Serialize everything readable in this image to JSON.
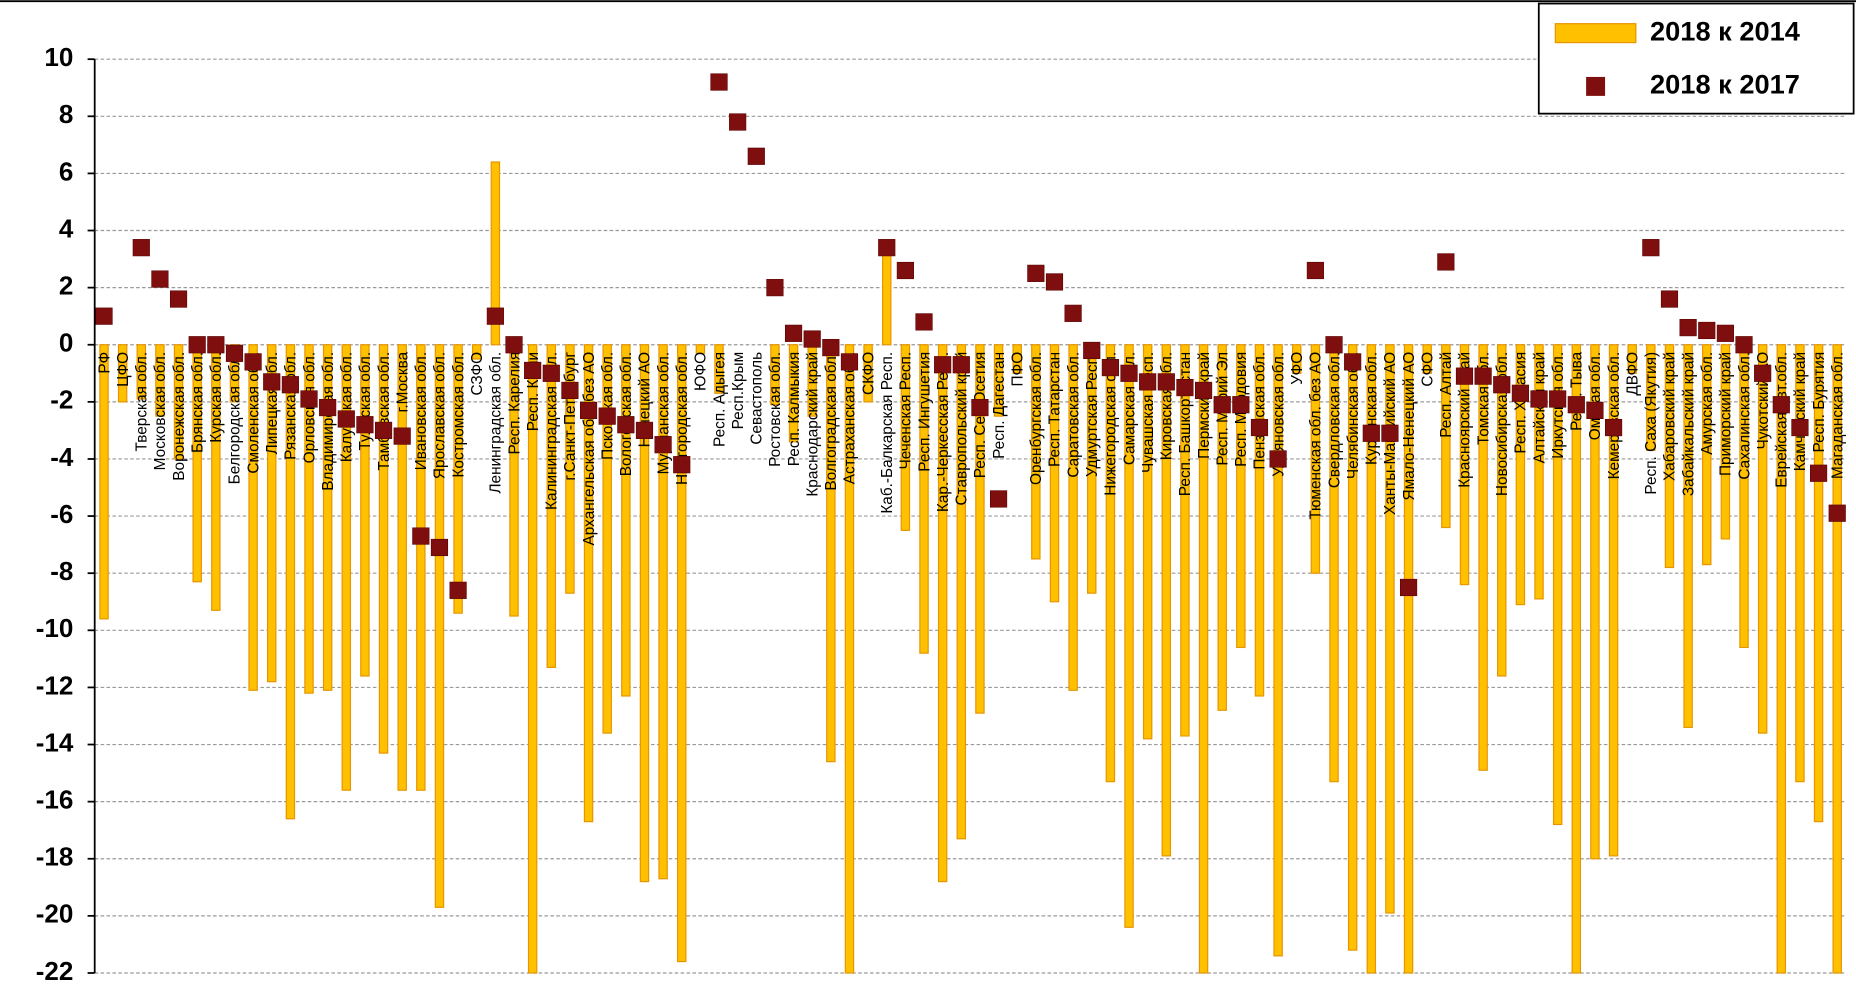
{
  "chart_data": {
    "type": "bar+scatter",
    "categories": [
      "РФ",
      "ЦФО",
      "Тверская обл.",
      "Московская обл.",
      "Воронежская обл.",
      "Брянская обл.",
      "Курская обл.",
      "Белгородская обл.",
      "Смоленская обл.",
      "Липецкая обл.",
      "Рязанская обл.",
      "Орловская обл.",
      "Владимирская обл.",
      "Калужская обл.",
      "Тульская обл.",
      "Тамбовская обл.",
      "г.Москва",
      "Ивановская обл.",
      "Ярославская обл.",
      "Костромская обл.",
      "СЗФО",
      "Ленинградская обл.",
      "Респ. Карелия",
      "Респ. Коми",
      "Калининградская обл.",
      "г.Санкт-Петербург",
      "Архангельская обл. без АО",
      "Псковская обл.",
      "Вологодская обл.",
      "Ненецкий АО",
      "Мурманская обл.",
      "Новгородская обл.",
      "ЮФО",
      "Респ. Адыгея",
      "Респ.Крым",
      "Севастополь",
      "Ростовская обл.",
      "Респ. Калмыкия",
      "Краснодарский край",
      "Волгоградская обл.",
      "Астраханская обл.",
      "СКФО",
      "Каб.-Балкарская Респ.",
      "Чеченская Респ.",
      "Респ. Ингушетия",
      "Кар.-Черкесская Респ.",
      "Ставропольский край",
      "Респ. Сев.Осетия",
      "Респ. Дагестан",
      "ПФО",
      "Оренбургская обл.",
      "Респ. Татарстан",
      "Саратовская обл.",
      "Удмуртская Респ.",
      "Нижегородская обл.",
      "Самарская обл.",
      "Чувашская Респ.",
      "Кировская обл.",
      "Респ. Башкортостан",
      "Пермский край",
      "Респ. Марий Эл",
      "Респ. Мордовия",
      "Пензенская обл.",
      "Ульяновская обл.",
      "УФО",
      "Тюменская обл. без АО",
      "Свердловская обл.",
      "Челябинская обл.",
      "Курганская обл.",
      "Ханты-Мансийский АО",
      "Ямало-Ненецкий АО",
      "СФО",
      "Респ. Алтай",
      "Красноярский край",
      "Томская обл.",
      "Новосибирская обл.",
      "Респ. Хакасия",
      "Алтайский край",
      "Иркутская обл.",
      "Респ. Тыва",
      "Омская обл.",
      "Кемеровская обл.",
      "ДВФО",
      "Респ. Саха (Якутия)",
      "Хабаровский край",
      "Забайкальский край",
      "Амурская обл.",
      "Приморский край",
      "Сахалинская обл.",
      "Чукотский АО",
      "Еврейская авт.обл.",
      "Камчатский край",
      "Респ. Бурятия",
      "Магаданская обл."
    ],
    "series": [
      {
        "name": "2018 к 2014",
        "type": "bar",
        "color": "#FFC000",
        "values": [
          -9.6,
          -2.0,
          -1.9,
          -2.5,
          -4.0,
          -8.3,
          -9.3,
          -2.0,
          -12.1,
          -11.8,
          -16.6,
          -12.2,
          -12.1,
          -15.6,
          -11.6,
          -14.3,
          -15.6,
          -15.6,
          -19.7,
          -9.4,
          -0.5,
          6.4,
          -9.5,
          -22,
          -11.3,
          -8.7,
          -16.7,
          -13.6,
          -12.3,
          -18.8,
          -18.7,
          -21.6,
          -0.3,
          -1.7,
          null,
          null,
          -2.1,
          -3.4,
          -2.5,
          -14.6,
          -22,
          -2.0,
          3.2,
          -6.5,
          -10.8,
          -18.8,
          -17.3,
          -12.9,
          -2.5,
          -1.0,
          -7.5,
          -9.0,
          -12.1,
          -8.7,
          -15.3,
          -20.4,
          -13.8,
          -17.9,
          -13.7,
          -22,
          -12.8,
          -10.6,
          -12.3,
          -21.4,
          -1.0,
          -8.0,
          -15.3,
          -21.2,
          -22,
          -19.9,
          -22,
          -1.0,
          -6.4,
          -8.4,
          -14.9,
          -11.6,
          -9.1,
          -8.9,
          -16.8,
          -22,
          -18.0,
          -17.9,
          -1.0,
          -3.7,
          -7.8,
          -13.4,
          -7.7,
          -6.8,
          -10.6,
          -13.6,
          -22,
          -15.3,
          -16.7,
          -22
        ]
      },
      {
        "name": "2018 к 2017",
        "type": "scatter",
        "color": "#7F0F0F",
        "values": [
          1.0,
          null,
          3.4,
          2.3,
          1.6,
          0,
          0,
          -0.3,
          -0.6,
          -1.3,
          -1.4,
          -1.9,
          -2.2,
          -2.6,
          -2.8,
          -3.0,
          -3.2,
          -6.7,
          -7.1,
          -8.6,
          null,
          1.0,
          0,
          -0.9,
          -1.0,
          -1.6,
          -2.3,
          -2.5,
          -2.8,
          -3.0,
          -3.5,
          -4.2,
          null,
          9.2,
          7.8,
          6.6,
          2.0,
          0.4,
          0.2,
          -0.1,
          -0.6,
          null,
          3.4,
          2.6,
          0.8,
          -0.7,
          -0.7,
          -2.2,
          -5.4,
          null,
          2.5,
          2.2,
          1.1,
          -0.2,
          -0.8,
          -1.0,
          -1.3,
          -1.3,
          -1.5,
          -1.6,
          -2.1,
          -2.1,
          -2.9,
          -4.0,
          null,
          2.6,
          0,
          -0.6,
          -3.1,
          -3.1,
          -8.5,
          null,
          2.9,
          -1.1,
          -1.1,
          -1.4,
          -1.7,
          -1.9,
          -1.9,
          -2.1,
          -2.3,
          -2.9,
          null,
          3.4,
          1.6,
          0.6,
          0.5,
          0.4,
          0.0,
          -1.0,
          -2.1,
          -2.9,
          -4.5,
          -5.9
        ]
      }
    ],
    "ylim": [
      -22,
      10
    ],
    "yticks": [
      -22,
      -20,
      -18,
      -16,
      -14,
      -12,
      -10,
      -8,
      -6,
      -4,
      -2,
      0,
      2,
      4,
      6,
      8,
      10
    ],
    "grid": true,
    "legend": "upper right"
  }
}
